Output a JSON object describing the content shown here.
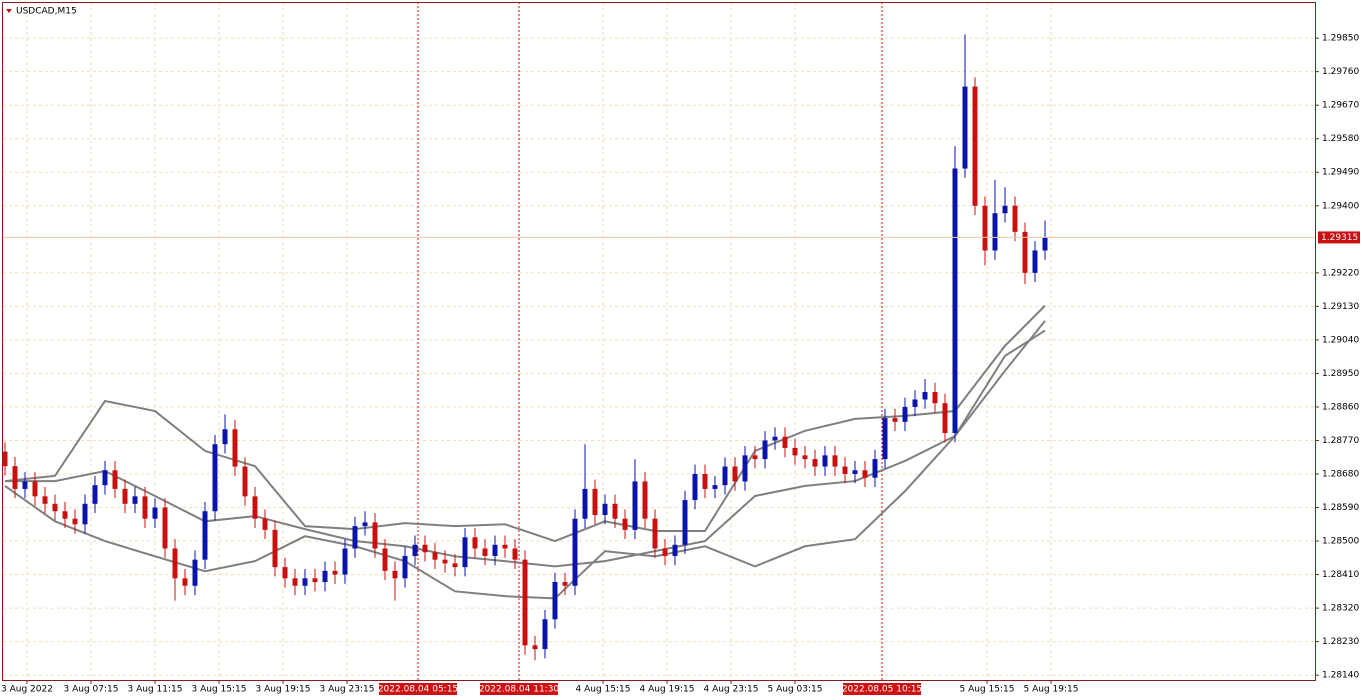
{
  "chart_data": {
    "type": "candlestick",
    "title": "USDCAD,M15",
    "up_color": "#0a14a8",
    "down_color": "#c81010",
    "ylim": [
      1.28127,
      1.29947
    ],
    "yticks": [
      {
        "value": 1.2814,
        "label": "1.28140"
      },
      {
        "value": 1.2823,
        "label": "1.28230"
      },
      {
        "value": 1.2832,
        "label": "1.28320"
      },
      {
        "value": 1.2841,
        "label": "1.28410"
      },
      {
        "value": 1.285,
        "label": "1.28500"
      },
      {
        "value": 1.2859,
        "label": "1.28590"
      },
      {
        "value": 1.2868,
        "label": "1.28680"
      },
      {
        "value": 1.2877,
        "label": "1.28770"
      },
      {
        "value": 1.2886,
        "label": "1.28860"
      },
      {
        "value": 1.2895,
        "label": "1.28950"
      },
      {
        "value": 1.2904,
        "label": "1.29040"
      },
      {
        "value": 1.2913,
        "label": "1.29130"
      },
      {
        "value": 1.2922,
        "label": "1.29220"
      },
      {
        "value": 1.294,
        "label": "1.29400"
      },
      {
        "value": 1.2949,
        "label": "1.29490"
      },
      {
        "value": 1.2958,
        "label": "1.29580"
      },
      {
        "value": 1.2967,
        "label": "1.29670"
      },
      {
        "value": 1.2976,
        "label": "1.29760"
      },
      {
        "value": 1.2985,
        "label": "1.29850"
      }
    ],
    "grid": true,
    "last_price": 1.29315,
    "time_labels": [
      "3 Aug 2022",
      "3 Aug 07:15",
      "3 Aug 11:15",
      "3 Aug 15:15",
      "3 Aug 19:15",
      "3 Aug 23:15",
      "4 Aug 15:15",
      "4 Aug 19:15",
      "4 Aug 23:15",
      "5 Aug 03:15",
      "5 Aug 15:15",
      "5 Aug 19:15"
    ],
    "markers": [
      "2022.08.04 05:15",
      "2022.08.04 11:30",
      "2022.08.05 10:15"
    ],
    "candles": {
      "open": [
        1.2874,
        1.28701,
        1.2864,
        1.2866,
        1.2862,
        1.286,
        1.2858,
        1.2856,
        1.28545,
        1.286,
        1.2865,
        1.2869,
        1.2864,
        1.286,
        1.2862,
        1.2856,
        1.2859,
        1.2848,
        1.284,
        1.2838,
        1.2845,
        1.2858,
        1.2876,
        1.288,
        1.287,
        1.2862,
        1.2856,
        1.2853,
        1.2843,
        1.284,
        1.2838,
        1.284,
        1.2839,
        1.2842,
        1.2841,
        1.2848,
        1.2854,
        1.2855,
        1.2848,
        1.2842,
        1.284,
        1.2846,
        1.2849,
        1.2847,
        1.2845,
        1.2844,
        1.2843,
        1.2851,
        1.2848,
        1.2846,
        1.2849,
        1.2848,
        1.2845,
        1.2822,
        1.2821,
        1.2829,
        1.2839,
        1.2838,
        1.2856,
        1.2864,
        1.2857,
        1.286,
        1.2856,
        1.2853,
        1.2866,
        1.2856,
        1.2848,
        1.2846,
        1.2849,
        1.2861,
        1.2868,
        1.2864,
        1.2865,
        1.287,
        1.2866,
        1.2873,
        1.2872,
        1.2877,
        1.2878,
        1.2875,
        1.2873,
        1.2872,
        1.287,
        1.2873,
        1.287,
        1.2868,
        1.2869,
        1.2867,
        1.2872,
        1.2883,
        1.2882,
        1.2886,
        1.2888,
        1.289,
        1.2887,
        1.2879,
        1.295,
        1.2972,
        1.294,
        1.2928,
        1.2938,
        1.294,
        1.2933,
        1.2922,
        1.2928
      ],
      "high": [
        1.28765,
        1.28726,
        1.28685,
        1.28685,
        1.28645,
        1.28625,
        1.28605,
        1.28585,
        1.28625,
        1.28675,
        1.28715,
        1.28715,
        1.28665,
        1.28645,
        1.28645,
        1.28615,
        1.28615,
        1.28505,
        1.28425,
        1.28475,
        1.28605,
        1.28785,
        1.2884,
        1.28825,
        1.28725,
        1.28645,
        1.28585,
        1.28555,
        1.28455,
        1.28425,
        1.28425,
        1.28425,
        1.28445,
        1.28445,
        1.28505,
        1.28565,
        1.2858,
        1.28575,
        1.28505,
        1.28445,
        1.28485,
        1.28515,
        1.28515,
        1.28495,
        1.28475,
        1.28465,
        1.28535,
        1.28535,
        1.28505,
        1.28515,
        1.28515,
        1.28505,
        1.28475,
        1.28245,
        1.28315,
        1.28415,
        1.28415,
        1.28585,
        1.2876,
        1.28665,
        1.28625,
        1.28625,
        1.28585,
        1.2872,
        1.28685,
        1.28585,
        1.28505,
        1.28515,
        1.28635,
        1.28705,
        1.28705,
        1.28675,
        1.28725,
        1.28725,
        1.28755,
        1.28755,
        1.28795,
        1.28805,
        1.28805,
        1.28775,
        1.28755,
        1.28745,
        1.28755,
        1.28755,
        1.28725,
        1.28715,
        1.28715,
        1.28745,
        1.28855,
        1.28855,
        1.28885,
        1.28905,
        1.28935,
        1.28925,
        1.28895,
        1.2956,
        1.2986,
        1.29745,
        1.29425,
        1.2947,
        1.2945,
        1.29425,
        1.29355,
        1.29305,
        1.2936
      ],
      "low": [
        1.28676,
        1.28615,
        1.28615,
        1.28595,
        1.28575,
        1.28555,
        1.28535,
        1.2852,
        1.2852,
        1.28575,
        1.28625,
        1.28615,
        1.28575,
        1.28575,
        1.28535,
        1.28535,
        1.28455,
        1.2834,
        1.28355,
        1.28355,
        1.28425,
        1.28555,
        1.28735,
        1.28675,
        1.28595,
        1.28535,
        1.28505,
        1.28405,
        1.28375,
        1.28355,
        1.28355,
        1.28365,
        1.28365,
        1.28385,
        1.28385,
        1.28455,
        1.28515,
        1.28455,
        1.28395,
        1.2834,
        1.28375,
        1.28435,
        1.28445,
        1.28425,
        1.28415,
        1.28405,
        1.28405,
        1.28455,
        1.28435,
        1.28435,
        1.28455,
        1.28425,
        1.28195,
        1.2818,
        1.28185,
        1.28265,
        1.28355,
        1.28355,
        1.28535,
        1.28545,
        1.28545,
        1.28535,
        1.28505,
        1.28505,
        1.28535,
        1.28455,
        1.28435,
        1.28435,
        1.28465,
        1.28585,
        1.28615,
        1.28615,
        1.28625,
        1.28635,
        1.28635,
        1.28695,
        1.28695,
        1.28745,
        1.28725,
        1.28705,
        1.28695,
        1.28675,
        1.28675,
        1.28675,
        1.28655,
        1.28655,
        1.28645,
        1.28645,
        1.28695,
        1.28795,
        1.28795,
        1.28835,
        1.28855,
        1.28845,
        1.28765,
        1.28765,
        1.29475,
        1.29375,
        1.2924,
        1.29255,
        1.29355,
        1.29305,
        1.2919,
        1.29195,
        1.29255
      ],
      "close": [
        1.28701,
        1.2864,
        1.2866,
        1.2862,
        1.286,
        1.2858,
        1.2856,
        1.28545,
        1.286,
        1.2865,
        1.2869,
        1.2864,
        1.286,
        1.2862,
        1.2856,
        1.2859,
        1.2848,
        1.284,
        1.2838,
        1.2845,
        1.2858,
        1.2876,
        1.288,
        1.287,
        1.2862,
        1.2856,
        1.2853,
        1.2843,
        1.284,
        1.2838,
        1.284,
        1.2839,
        1.2842,
        1.2841,
        1.2848,
        1.2854,
        1.2855,
        1.2848,
        1.2842,
        1.284,
        1.2846,
        1.2849,
        1.2847,
        1.2845,
        1.2844,
        1.2843,
        1.2851,
        1.2848,
        1.2846,
        1.2849,
        1.2848,
        1.2845,
        1.2822,
        1.2821,
        1.2829,
        1.2839,
        1.2838,
        1.2856,
        1.2864,
        1.2857,
        1.286,
        1.2856,
        1.2853,
        1.2866,
        1.2856,
        1.2848,
        1.2846,
        1.2849,
        1.2861,
        1.2868,
        1.2864,
        1.2865,
        1.287,
        1.2866,
        1.2873,
        1.2872,
        1.2877,
        1.2878,
        1.2875,
        1.2873,
        1.2872,
        1.287,
        1.2873,
        1.287,
        1.2868,
        1.2869,
        1.2867,
        1.2872,
        1.2883,
        1.2882,
        1.2886,
        1.2888,
        1.289,
        1.2887,
        1.2879,
        1.295,
        1.2972,
        1.294,
        1.2928,
        1.2938,
        1.294,
        1.2933,
        1.2922,
        1.2928,
        1.29315
      ]
    },
    "bands_color": "#7f7f7f",
    "bands": [
      {
        "x": [
          0,
          5,
          10,
          15,
          20,
          25,
          30,
          35,
          40,
          45,
          50,
          55,
          60,
          65,
          70,
          75,
          80,
          85,
          90,
          95,
          100,
          104
        ],
        "values": [
          1.28661,
          1.28675,
          1.28876,
          1.28849,
          1.28742,
          1.28701,
          1.2854,
          1.28532,
          1.28548,
          1.2854,
          1.28545,
          1.285,
          1.28553,
          1.28527,
          1.28527,
          1.28742,
          1.28796,
          1.28828,
          1.28836,
          1.28849,
          1.29024,
          1.29132
        ]
      },
      {
        "x": [
          0,
          5,
          10,
          15,
          20,
          25,
          30,
          35,
          40,
          45,
          50,
          55,
          60,
          65,
          70,
          75,
          80,
          85,
          90,
          95,
          100,
          104
        ],
        "values": [
          1.28661,
          1.28661,
          1.28688,
          1.28621,
          1.28553,
          1.28567,
          1.28532,
          1.285,
          1.28486,
          1.28459,
          1.28446,
          1.28432,
          1.28446,
          1.28473,
          1.285,
          1.28621,
          1.28648,
          1.28661,
          1.28715,
          1.28782,
          1.28997,
          1.29065
        ]
      },
      {
        "x": [
          0,
          5,
          10,
          15,
          20,
          25,
          30,
          35,
          40,
          45,
          50,
          55,
          60,
          65,
          70,
          75,
          80,
          85,
          90,
          95,
          100,
          104
        ],
        "values": [
          1.28648,
          1.28553,
          1.285,
          1.28459,
          1.28419,
          1.28446,
          1.28513,
          1.28486,
          1.28446,
          1.28365,
          1.28352,
          1.28346,
          1.28473,
          1.28459,
          1.28486,
          1.28432,
          1.28486,
          1.28505,
          1.28634,
          1.28782,
          1.28957,
          1.29091
        ]
      }
    ]
  }
}
